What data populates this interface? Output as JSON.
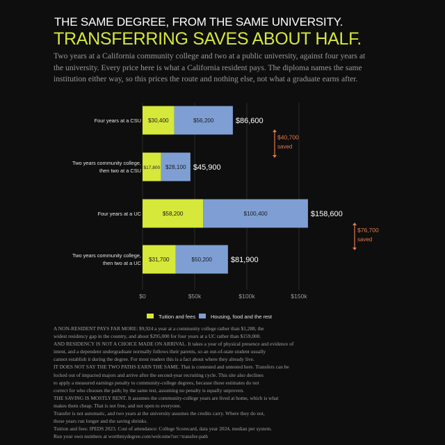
{
  "header": {
    "kicker": "THE SAME DEGREE, FROM THE SAME UNIVERSITY.",
    "headline": "TRANSFERRING SAVES ABOUT HALF.",
    "intro_lines": [
      "Two years at a California community college and two at a public university, against four years at",
      "the university. Every price here is what a California resident pays. The diploma names the same",
      "institution either way, so this prices the route and nothing else, not what a graduate earns after."
    ]
  },
  "colors": {
    "tuition": "#d6e83a",
    "housing": "#7f9fd4",
    "saved": "#e07b4f",
    "background": "#0e0e0e"
  },
  "chart_data": {
    "type": "bar",
    "orientation": "horizontal",
    "stacked": true,
    "categories": [
      "Four years at a CSU",
      "Two years community college, then two at a CSU",
      "Four years at a UC",
      "Two years community college, then two at a UC"
    ],
    "category_lines": [
      [
        "Four years at a CSU"
      ],
      [
        "Two years community college,",
        "then two at a CSU"
      ],
      [
        "Four years at a UC"
      ],
      [
        "Two years community college,",
        "then two at a UC"
      ]
    ],
    "series": [
      {
        "name": "Tuition and fees",
        "values": [
          30400,
          17800,
          58200,
          31700
        ],
        "labels": [
          "$30,400",
          "$17,800",
          "$58,200",
          "$31,700"
        ]
      },
      {
        "name": "Housing, food and the rest",
        "values": [
          56200,
          28100,
          100400,
          50200
        ],
        "labels": [
          "$56,200",
          "$28,100",
          "$100,400",
          "$50,200"
        ]
      }
    ],
    "totals": [
      86600,
      45900,
      158600,
      81900
    ],
    "total_labels": [
      "$86,600",
      "$45,900",
      "$158,600",
      "$81,900"
    ],
    "xlim": [
      0,
      160000
    ],
    "xticks": [
      0,
      50000,
      100000,
      150000
    ],
    "xtick_labels": [
      "$0",
      "$50k",
      "$100k",
      "$150k"
    ],
    "grid": true,
    "legend": "bottom",
    "annotations": [
      {
        "between": [
          0,
          1
        ],
        "amount": "$40,700",
        "text": "saved"
      },
      {
        "between": [
          2,
          3
        ],
        "amount": "$76,700",
        "text": "saved"
      }
    ]
  },
  "notes": [
    "A NON-RESIDENT PAYS FAR MORE: $9,924 a year at a community college rather than $1,288, the",
    "widest residency gap in the country, and about $295,000 for four years at a UC rather than $159,000.",
    "AND RESIDENCY IS NOT A CHOICE MADE ON ARRIVAL. It takes a year of physical presence and evidence of",
    "intent, and a dependent undergraduate normally follows their parents, so an out-of-state student usually",
    "cannot establish it during the degree. For most readers this is a fact about where they already live.",
    "IT DOES NOT SAY THE TWO PATHS EARN THE SAME. That is contested and untested here. Transfers can be",
    "locked out of impacted majors and arrive after the second-year recruiting cycle. This site also declines",
    "to apply a measured earnings penalty to community-college degrees, because those estimates do not",
    "correct for who chooses the path; by the same test, assuming no penalty is equally unproven.",
    "THE SAVING IS MOSTLY RENT. It assumes the community-college years are lived at home, which is what",
    "makes them cheap. That is not free, and not open to everyone.",
    "Transfer is not automatic, and two years at the university assumes the credits carry. Where they do not,",
    "those years run longer and the saving shrinks.",
    "Tuition and fees: IPEDS 2023. Cost of attendance: College Scorecard, data year 2024, median per system.",
    "Run your own numbers at worthmydegree.com/welcome?src=transfer-path"
  ]
}
